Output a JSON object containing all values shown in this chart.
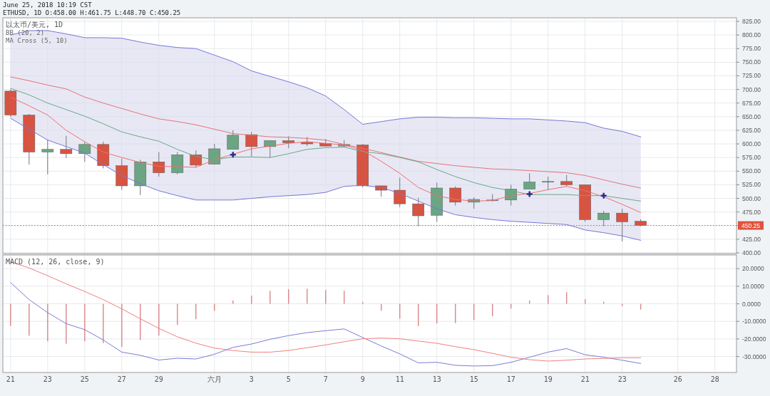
{
  "chart_data": [
    {
      "type": "candlestick",
      "title": "以太币/美元, 1D",
      "subtitle": "ETHUSD, 1D O:458.00 H:461.75 L:448.70 C:450.25",
      "annotations": [
        "June 25, 2018 10:19 CST",
        "BB (20, 2)",
        "MA Cross (5, 10)"
      ],
      "x": [
        "2018-05-21",
        "2018-05-22",
        "2018-05-23",
        "2018-05-24",
        "2018-05-25",
        "2018-05-26",
        "2018-05-27",
        "2018-05-28",
        "2018-05-29",
        "2018-05-30",
        "2018-05-31",
        "2018-06-01",
        "2018-06-02",
        "2018-06-03",
        "2018-06-04",
        "2018-06-05",
        "2018-06-06",
        "2018-06-07",
        "2018-06-08",
        "2018-06-09",
        "2018-06-10",
        "2018-06-11",
        "2018-06-12",
        "2018-06-13",
        "2018-06-14",
        "2018-06-15",
        "2018-06-16",
        "2018-06-17",
        "2018-06-18",
        "2018-06-19",
        "2018-06-20",
        "2018-06-21",
        "2018-06-22",
        "2018-06-23",
        "2018-06-24"
      ],
      "xticks": [
        {
          "value": "2018-05-21",
          "label": null
        },
        {
          "value": "2018-05-23",
          "label": null
        },
        {
          "value": "2018-05-25",
          "label": null
        },
        {
          "value": "2018-05-27",
          "label": null
        },
        {
          "value": "2018-05-29",
          "label": null
        },
        {
          "value": "2018-06-01",
          "label": null
        },
        {
          "value": "2018-06-03",
          "label": null
        },
        {
          "value": "2018-06-05",
          "label": null
        },
        {
          "value": "2018-06-07",
          "label": null
        },
        {
          "value": "2018-06-09",
          "label": null
        },
        {
          "value": "2018-06-11",
          "label": null
        },
        {
          "value": "2018-06-13",
          "label": null
        },
        {
          "value": "2018-06-15",
          "label": null
        },
        {
          "value": "2018-06-17",
          "label": null
        },
        {
          "value": "2018-06-19",
          "label": null
        },
        {
          "value": "2018-06-21",
          "label": null
        },
        {
          "value": "2018-06-23",
          "label": null
        },
        {
          "value": "2018-06-26",
          "label": null
        },
        {
          "value": "2018-06-28",
          "label": null
        }
      ],
      "ohlc": [
        [
          697,
          700,
          650,
          653
        ],
        [
          653,
          655,
          562,
          585
        ],
        [
          585,
          608,
          544,
          590
        ],
        [
          590,
          615,
          574,
          582
        ],
        [
          582,
          604,
          567,
          599
        ],
        [
          599,
          604,
          555,
          560
        ],
        [
          560,
          573,
          516,
          523
        ],
        [
          523,
          571,
          506,
          567
        ],
        [
          567,
          585,
          540,
          547
        ],
        [
          547,
          585,
          544,
          580
        ],
        [
          580,
          588,
          557,
          561
        ],
        [
          563,
          600,
          562,
          591
        ],
        [
          590,
          625,
          590,
          616
        ],
        [
          617,
          622,
          577,
          595
        ],
        [
          595,
          606,
          575,
          606
        ],
        [
          606,
          614,
          592,
          602
        ],
        [
          603,
          613,
          596,
          600
        ],
        [
          601,
          609,
          595,
          596
        ],
        [
          596,
          607,
          594,
          599
        ],
        [
          598,
          600,
          520,
          523
        ],
        [
          523,
          523,
          503,
          515
        ],
        [
          515,
          538,
          484,
          490
        ],
        [
          490,
          501,
          449,
          468
        ],
        [
          469,
          529,
          457,
          519
        ],
        [
          519,
          522,
          487,
          493
        ],
        [
          493,
          502,
          481,
          498
        ],
        [
          496,
          508,
          494,
          497
        ],
        [
          497,
          525,
          487,
          517
        ],
        [
          517,
          546,
          517,
          530
        ],
        [
          530,
          540,
          516,
          531
        ],
        [
          531,
          543,
          522,
          525
        ],
        [
          525,
          525,
          457,
          461
        ],
        [
          461,
          477,
          449,
          473
        ],
        [
          473,
          481,
          421,
          457
        ],
        [
          458,
          461.75,
          448.7,
          450.25
        ]
      ],
      "colors": [
        "#d75442",
        "#d75442",
        "#6ba583",
        "#d75442",
        "#6ba583",
        "#d75442",
        "#d75442",
        "#6ba583",
        "#d75442",
        "#6ba583",
        "#d75442",
        "#6ba583",
        "#6ba583",
        "#d75442",
        "#6ba583",
        "#d75442",
        "#d75442",
        "#d75442",
        "#6ba583",
        "#d75442",
        "#d75442",
        "#d75442",
        "#d75442",
        "#6ba583",
        "#d75442",
        "#6ba583",
        "#6ba583",
        "#6ba583",
        "#6ba583",
        "#6ba583",
        "#d75442",
        "#d75442",
        "#6ba583",
        "#d75442",
        "#d75442"
      ],
      "series": [
        {
          "type": "line",
          "color": "#e57373",
          "values": [
            723,
            716,
            708,
            701,
            686,
            675,
            665,
            655,
            646,
            641,
            635,
            627,
            619,
            616,
            613,
            612,
            610,
            607,
            599,
            592,
            584,
            576,
            568,
            564,
            560,
            557,
            554,
            553,
            551,
            549,
            547,
            542,
            534,
            526,
            519
          ],
          "lower": [
            647,
            627,
            607,
            595,
            583,
            562,
            542,
            527,
            514,
            505,
            497,
            497,
            497,
            500,
            503,
            505,
            507,
            511,
            522,
            524,
            520,
            509,
            495,
            481,
            470,
            465,
            461,
            458,
            456,
            454,
            452,
            442,
            437,
            431,
            423
          ],
          "upper": [
            800,
            808,
            808,
            802,
            795,
            795,
            794,
            787,
            781,
            777,
            775,
            763,
            751,
            734,
            724,
            714,
            703,
            688,
            663,
            636,
            641,
            646,
            649,
            649,
            648,
            648,
            647,
            646,
            646,
            644,
            642,
            639,
            629,
            623,
            613
          ]
        },
        {
          "type": "line",
          "color": "#7676d8",
          "values": [
            800,
            808,
            808,
            802,
            795,
            795,
            794,
            787,
            781,
            777,
            775,
            763,
            751,
            734,
            724,
            714,
            703,
            688,
            663,
            636,
            641,
            646,
            649,
            649,
            648,
            648,
            647,
            646,
            646,
            644,
            642,
            639,
            629,
            623,
            613
          ]
        },
        {
          "type": "line",
          "color": "#7676d8",
          "values": [
            647,
            627,
            607,
            595,
            583,
            562,
            542,
            527,
            514,
            505,
            497,
            497,
            497,
            500,
            503,
            505,
            507,
            511,
            522,
            524,
            520,
            509,
            495,
            481,
            470,
            465,
            461,
            458,
            456,
            454,
            452,
            442,
            437,
            431,
            423
          ]
        },
        {
          "type": "line",
          "color": "#6aa886",
          "values": [
            702,
            690,
            675,
            663,
            651,
            637,
            622,
            613,
            605,
            590,
            577,
            571,
            576,
            576,
            575,
            582,
            590,
            593,
            594,
            586,
            582,
            575,
            567,
            553,
            540,
            529,
            520,
            514,
            507,
            507,
            507,
            505,
            505,
            500,
            495
          ]
        },
        {
          "type": "line",
          "color": "#ef6f6f",
          "values": [
            686,
            670,
            653,
            625,
            604,
            585,
            575,
            566,
            559,
            558,
            557,
            571,
            581,
            591,
            596,
            601,
            604,
            601,
            598,
            588,
            568,
            546,
            520,
            505,
            498,
            495,
            496,
            505,
            509,
            516,
            522,
            514,
            503,
            489,
            474
          ]
        },
        {
          "type": "scatter",
          "marker": "cross",
          "color": "#2e2e8a",
          "x": [
            "2018-06-02",
            "2018-06-18",
            "2018-06-22"
          ],
          "values": [
            580,
            508,
            505
          ]
        }
      ],
      "xlim": [
        "2018-05-20T14:00",
        "2018-06-29T04:00"
      ],
      "ylim": [
        398.7,
        831.5
      ],
      "yticks": [
        {
          "value": 400,
          "label": "400.00"
        },
        {
          "value": 425,
          "label": "425.00"
        },
        {
          "value": 450,
          "label": null
        },
        {
          "value": 475,
          "label": "475.00"
        },
        {
          "value": 500,
          "label": "500.00"
        },
        {
          "value": 525,
          "label": "525.00"
        },
        {
          "value": 550,
          "label": "550.00"
        },
        {
          "value": 575,
          "label": "575.00"
        },
        {
          "value": 600,
          "label": "600.00"
        },
        {
          "value": 625,
          "label": "625.00"
        },
        {
          "value": 650,
          "label": "650.00"
        },
        {
          "value": 675,
          "label": "675.00"
        },
        {
          "value": 700,
          "label": "700.00"
        },
        {
          "value": 725,
          "label": "725.00"
        },
        {
          "value": 750,
          "label": "750.00"
        },
        {
          "value": 775,
          "label": "775.00"
        },
        {
          "value": 800,
          "label": "800.00"
        },
        {
          "value": 825,
          "label": "825.00"
        }
      ],
      "ref_lines": [
        {
          "axis": "y",
          "value": 450.25,
          "label": "450.25",
          "color": "#e0533e",
          "line_style": "dotted"
        }
      ],
      "grid": true,
      "tick_labels": "y"
    },
    {
      "type": "bar",
      "title": "MACD (12, 26, close, 9)",
      "x": [
        "2018-05-21",
        "2018-05-22",
        "2018-05-23",
        "2018-05-24",
        "2018-05-25",
        "2018-05-26",
        "2018-05-27",
        "2018-05-28",
        "2018-05-29",
        "2018-05-30",
        "2018-05-31",
        "2018-06-01",
        "2018-06-02",
        "2018-06-03",
        "2018-06-04",
        "2018-06-05",
        "2018-06-06",
        "2018-06-07",
        "2018-06-08",
        "2018-06-09",
        "2018-06-10",
        "2018-06-11",
        "2018-06-12",
        "2018-06-13",
        "2018-06-14",
        "2018-06-15",
        "2018-06-16",
        "2018-06-17",
        "2018-06-18",
        "2018-06-19",
        "2018-06-20",
        "2018-06-21",
        "2018-06-22",
        "2018-06-23",
        "2018-06-24"
      ],
      "series": [
        {
          "type": "bar",
          "color": "#d9888a",
          "values": [
            -12.5,
            -18.2,
            -21.3,
            -22.7,
            -21.3,
            -22.4,
            -24.5,
            -20.6,
            -18.1,
            -12,
            -8.8,
            -4,
            1.9,
            4.7,
            7.4,
            8.3,
            8.6,
            7.9,
            7.5,
            1,
            -3.9,
            -8.5,
            -12.7,
            -11.1,
            -11,
            -9.2,
            -7.1,
            -2.7,
            1.9,
            4.9,
            6.6,
            2.7,
            1.2,
            -1.3,
            -3.3
          ]
        },
        {
          "type": "line",
          "color": "#7b7bd8",
          "values": [
            12.1,
            2.4,
            -5,
            -11.3,
            -14.7,
            -20.6,
            -27.5,
            -29.3,
            -32,
            -31,
            -31.4,
            -28.7,
            -24.8,
            -22.9,
            -20.2,
            -18.1,
            -16.4,
            -15.3,
            -14.3,
            -19.2,
            -24,
            -28.5,
            -33.6,
            -33.3,
            -35,
            -35.4,
            -35.2,
            -33.3,
            -30.4,
            -27.5,
            -25.5,
            -29,
            -30.4,
            -32.1,
            -34
          ]
        },
        {
          "type": "line",
          "color": "#f08080",
          "values": [
            24,
            20.4,
            16,
            11.4,
            7,
            2.4,
            -2.9,
            -8.5,
            -14,
            -18.8,
            -22.4,
            -25.2,
            -26.6,
            -27.5,
            -27.5,
            -26.6,
            -25,
            -23.4,
            -21.6,
            -19.9,
            -19.5,
            -19.9,
            -21.2,
            -22.5,
            -24.4,
            -26.1,
            -28.2,
            -30.4,
            -31.8,
            -32.6,
            -32.1,
            -31.4,
            -31.1,
            -30.7,
            -30.7
          ]
        }
      ],
      "xlim": [
        "2018-05-20T14:00",
        "2018-06-29T04:00"
      ],
      "xticks": [
        {
          "value": "2018-05-21",
          "label": "21"
        },
        {
          "value": "2018-05-23",
          "label": "23"
        },
        {
          "value": "2018-05-25",
          "label": "25"
        },
        {
          "value": "2018-05-27",
          "label": "27"
        },
        {
          "value": "2018-05-29",
          "label": "29"
        },
        {
          "value": "2018-06-01",
          "label": "六月"
        },
        {
          "value": "2018-06-03",
          "label": "3"
        },
        {
          "value": "2018-06-05",
          "label": "5"
        },
        {
          "value": "2018-06-07",
          "label": "7"
        },
        {
          "value": "2018-06-09",
          "label": "9"
        },
        {
          "value": "2018-06-11",
          "label": "11"
        },
        {
          "value": "2018-06-13",
          "label": "13"
        },
        {
          "value": "2018-06-15",
          "label": "15"
        },
        {
          "value": "2018-06-17",
          "label": "17"
        },
        {
          "value": "2018-06-19",
          "label": "19"
        },
        {
          "value": "2018-06-21",
          "label": "21"
        },
        {
          "value": "2018-06-23",
          "label": "23"
        },
        {
          "value": "2018-06-26",
          "label": "26"
        },
        {
          "value": "2018-06-28",
          "label": "28"
        }
      ],
      "ylim": [
        -39.1,
        27.8
      ],
      "yticks": [
        {
          "value": -30,
          "label": "-30.0000"
        },
        {
          "value": -20,
          "label": "-20.0000"
        },
        {
          "value": -10,
          "label": "-10.0000"
        },
        {
          "value": 0,
          "label": "0.0000"
        },
        {
          "value": 10,
          "label": "10.0000"
        },
        {
          "value": 20,
          "label": "20.0000"
        }
      ],
      "grid": true
    }
  ]
}
